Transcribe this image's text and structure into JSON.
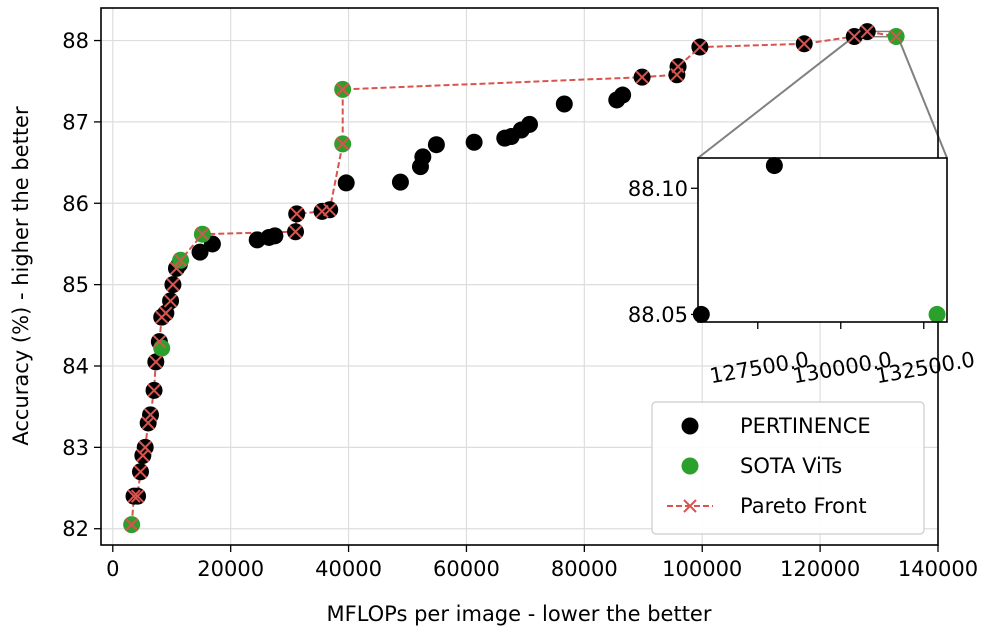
{
  "chart_data": {
    "type": "scatter",
    "title": "",
    "xlabel": "MFLOPs per image - lower the better",
    "ylabel": "Accuracy (%) - higher the better",
    "xlim": [
      -2000,
      140000
    ],
    "ylim": [
      81.8,
      88.4
    ],
    "xticks": [
      0,
      20000,
      40000,
      60000,
      80000,
      100000,
      120000,
      140000
    ],
    "xtick_labels": [
      "0",
      "20000",
      "40000",
      "60000",
      "80000",
      "100000",
      "120000",
      "140000"
    ],
    "yticks": [
      82,
      83,
      84,
      85,
      86,
      87,
      88
    ],
    "ytick_labels": [
      "82",
      "83",
      "84",
      "85",
      "86",
      "87",
      "88"
    ],
    "grid": true,
    "legend": {
      "position": "bottom-right",
      "entries": [
        "PERTINENCE",
        "SOTA ViTs",
        "Pareto Front"
      ]
    },
    "colors": {
      "pertinence": "#000000",
      "sota": "#2ca02c",
      "pareto": "#d9534f",
      "connector": "#808080"
    },
    "series": [
      {
        "name": "PERTINENCE",
        "points": [
          [
            3600,
            82.4
          ],
          [
            4200,
            82.4
          ],
          [
            4700,
            82.7
          ],
          [
            5100,
            82.9
          ],
          [
            5500,
            83.0
          ],
          [
            6000,
            83.3
          ],
          [
            6400,
            83.4
          ],
          [
            7000,
            83.7
          ],
          [
            7300,
            84.05
          ],
          [
            7900,
            84.3
          ],
          [
            8300,
            84.6
          ],
          [
            9000,
            84.65
          ],
          [
            9800,
            84.8
          ],
          [
            10200,
            85.0
          ],
          [
            10800,
            85.2
          ],
          [
            11300,
            85.25
          ],
          [
            14800,
            85.4
          ],
          [
            16900,
            85.5
          ],
          [
            24500,
            85.55
          ],
          [
            26500,
            85.58
          ],
          [
            27500,
            85.6
          ],
          [
            31000,
            85.65
          ],
          [
            31200,
            85.87
          ],
          [
            35500,
            85.9
          ],
          [
            36800,
            85.92
          ],
          [
            39600,
            86.25
          ],
          [
            48800,
            86.26
          ],
          [
            52200,
            86.45
          ],
          [
            52600,
            86.57
          ],
          [
            54900,
            86.72
          ],
          [
            61300,
            86.75
          ],
          [
            66500,
            86.8
          ],
          [
            67600,
            86.82
          ],
          [
            69300,
            86.9
          ],
          [
            70700,
            86.97
          ],
          [
            76600,
            87.22
          ],
          [
            85500,
            87.27
          ],
          [
            86500,
            87.33
          ],
          [
            89800,
            87.55
          ],
          [
            95700,
            87.58
          ],
          [
            95900,
            87.68
          ],
          [
            99600,
            87.92
          ],
          [
            117300,
            87.96
          ],
          [
            125800,
            88.05
          ],
          [
            128000,
            88.11
          ]
        ]
      },
      {
        "name": "SOTA ViTs",
        "points": [
          [
            3200,
            82.05
          ],
          [
            8300,
            84.22
          ],
          [
            15200,
            85.62
          ],
          [
            11500,
            85.3
          ],
          [
            39000,
            86.73
          ],
          [
            39000,
            87.4
          ],
          [
            132900,
            88.05
          ]
        ]
      },
      {
        "name": "Pareto Front",
        "points": [
          [
            3200,
            82.05
          ],
          [
            3600,
            82.4
          ],
          [
            4200,
            82.4
          ],
          [
            4700,
            82.7
          ],
          [
            5100,
            82.9
          ],
          [
            5500,
            83.0
          ],
          [
            6000,
            83.3
          ],
          [
            6400,
            83.4
          ],
          [
            7000,
            83.7
          ],
          [
            7300,
            84.05
          ],
          [
            7900,
            84.3
          ],
          [
            8300,
            84.6
          ],
          [
            9000,
            84.65
          ],
          [
            9800,
            84.8
          ],
          [
            10200,
            85.0
          ],
          [
            10800,
            85.2
          ],
          [
            11500,
            85.3
          ],
          [
            15200,
            85.62
          ],
          [
            31000,
            85.65
          ],
          [
            31200,
            85.87
          ],
          [
            35500,
            85.9
          ],
          [
            36800,
            85.92
          ],
          [
            39000,
            86.73
          ],
          [
            39000,
            87.4
          ],
          [
            89800,
            87.55
          ],
          [
            95700,
            87.58
          ],
          [
            95900,
            87.68
          ],
          [
            99600,
            87.92
          ],
          [
            117300,
            87.96
          ],
          [
            125800,
            88.05
          ],
          [
            128000,
            88.11
          ],
          [
            132900,
            88.05
          ]
        ]
      }
    ],
    "inset": {
      "xlim": [
        125700,
        133200
      ],
      "ylim": [
        88.047,
        88.112
      ],
      "xticks": [
        127500,
        130000,
        132500
      ],
      "xtick_labels": [
        "127500.0",
        "130000.0",
        "132500.0"
      ],
      "yticks": [
        88.05,
        88.1
      ],
      "ytick_labels": [
        "88.05",
        "88.10"
      ],
      "points": [
        {
          "series": "PERTINENCE",
          "x": 125800,
          "y": 88.05
        },
        {
          "series": "PERTINENCE",
          "x": 128000,
          "y": 88.109
        },
        {
          "series": "SOTA ViTs",
          "x": 132900,
          "y": 88.05
        }
      ]
    }
  }
}
